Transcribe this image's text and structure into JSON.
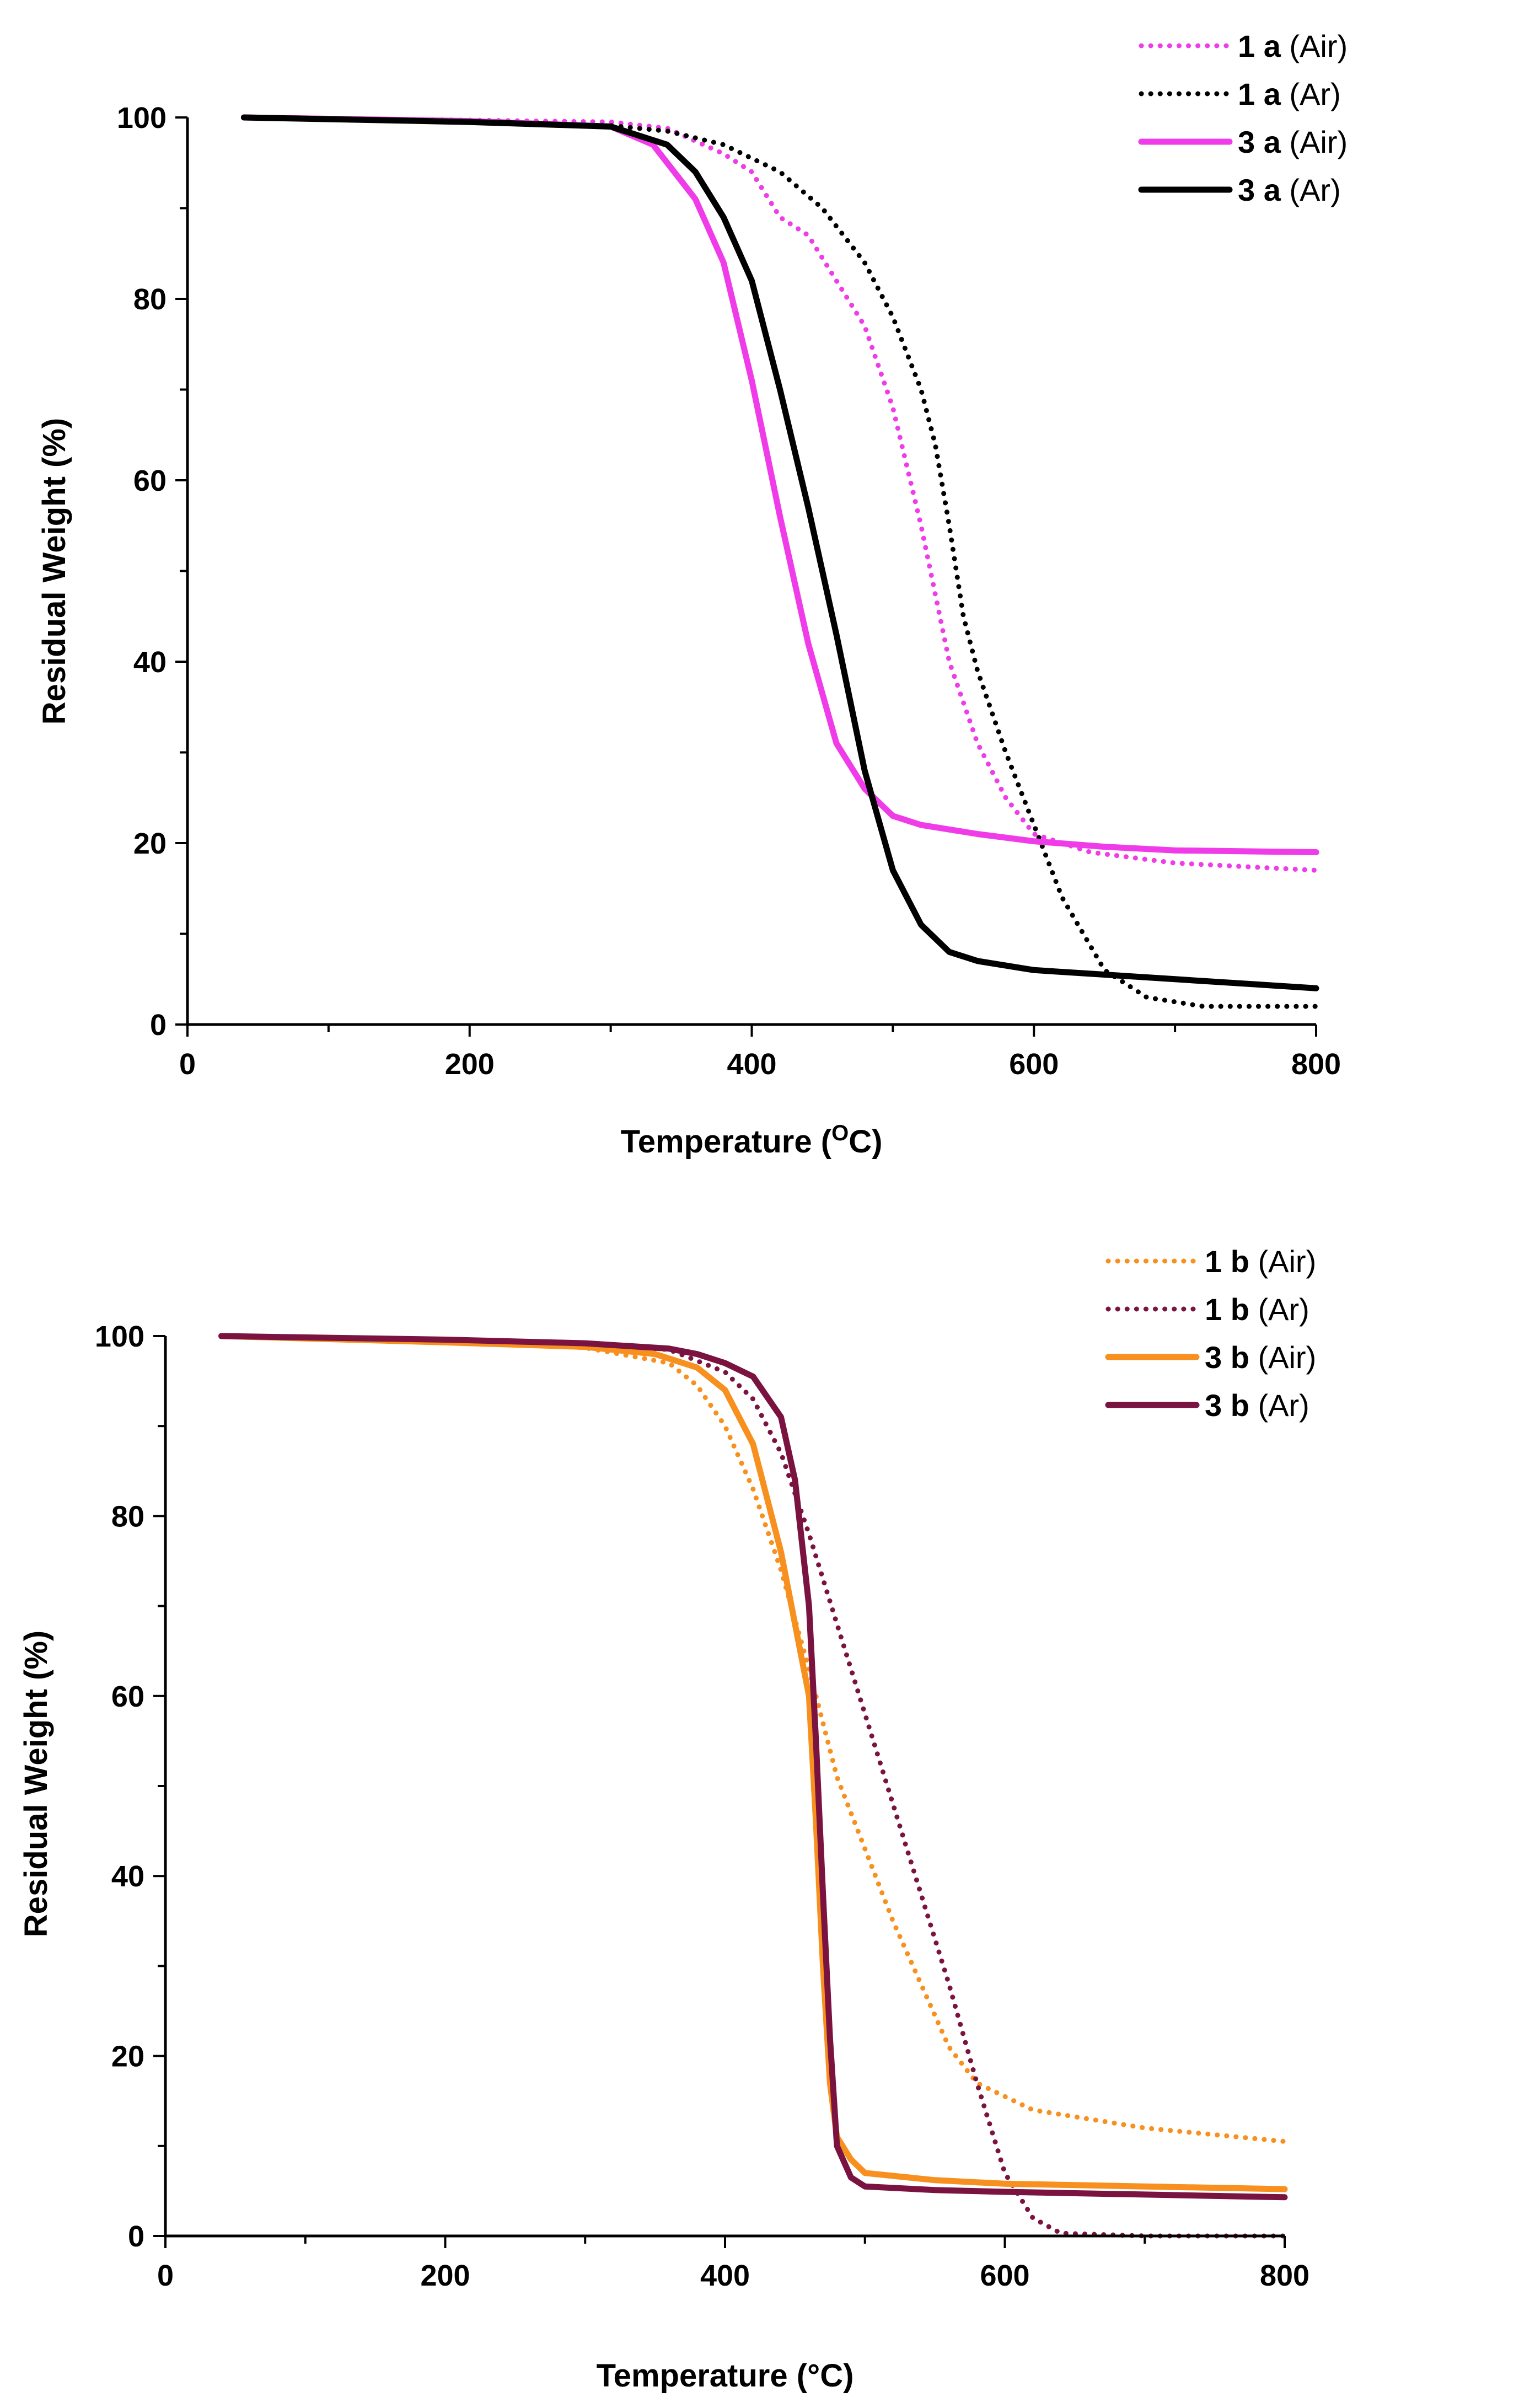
{
  "chart_data": [
    {
      "type": "line",
      "title": "",
      "xlabel": "Temperature (",
      "xlabel_superscript": "O",
      "xlabel_suffix": "C)",
      "ylabel": "Residual Weight (%)",
      "xlim": [
        0,
        800
      ],
      "ylim": [
        0,
        100
      ],
      "xticks": [
        "0",
        "200",
        "400",
        "600",
        "800"
      ],
      "yticks": [
        "0",
        "20",
        "40",
        "60",
        "80",
        "100"
      ],
      "grid": false,
      "legend_position": "top-right",
      "series": [
        {
          "name_bold": "1 a",
          "name_rest": "(Air)",
          "color": "#ef3ce8",
          "style": "dotted",
          "x": [
            40,
            200,
            300,
            340,
            380,
            400,
            420,
            440,
            460,
            480,
            500,
            520,
            540,
            560,
            580,
            600,
            640,
            700,
            800
          ],
          "y": [
            100,
            99.7,
            99.5,
            98.8,
            96,
            94,
            89,
            87,
            82,
            77,
            68,
            55,
            40,
            31,
            25,
            21,
            19,
            17.8,
            17
          ]
        },
        {
          "name_bold": "1 a",
          "name_rest": "(Ar)",
          "color": "#000000",
          "style": "dotted",
          "x": [
            40,
            200,
            300,
            340,
            380,
            420,
            450,
            480,
            500,
            520,
            530,
            540,
            550,
            560,
            580,
            600,
            620,
            650,
            680,
            720,
            800
          ],
          "y": [
            100,
            99.5,
            99.1,
            98.5,
            97,
            94,
            90,
            84,
            78,
            70,
            64,
            55,
            45,
            39,
            30,
            22,
            14,
            6,
            3,
            2,
            2
          ]
        },
        {
          "name_bold": "3 a",
          "name_rest": "(Air)",
          "color": "#ef3ce8",
          "style": "solid",
          "x": [
            40,
            200,
            300,
            330,
            360,
            380,
            400,
            420,
            440,
            460,
            480,
            500,
            520,
            560,
            600,
            650,
            700,
            800
          ],
          "y": [
            100,
            99.6,
            99,
            97,
            91,
            84,
            71,
            56,
            42,
            31,
            26,
            23,
            22,
            21,
            20.2,
            19.6,
            19.2,
            19
          ]
        },
        {
          "name_bold": "3 a",
          "name_rest": "(Ar)",
          "color": "#000000",
          "style": "solid",
          "x": [
            40,
            200,
            300,
            340,
            360,
            380,
            400,
            420,
            440,
            460,
            480,
            500,
            520,
            540,
            560,
            600,
            650,
            700,
            800
          ],
          "y": [
            100,
            99.5,
            99,
            97,
            94,
            89,
            82,
            70,
            57,
            43,
            28,
            17,
            11,
            8,
            7,
            6,
            5.5,
            5,
            4
          ]
        }
      ]
    },
    {
      "type": "line",
      "title": "",
      "xlabel": "Temperature (°C)",
      "ylabel": "Residual Weight (%)",
      "xlim": [
        0,
        800
      ],
      "ylim": [
        0,
        100
      ],
      "xticks": [
        "0",
        "200",
        "400",
        "600",
        "800"
      ],
      "yticks": [
        "0",
        "20",
        "40",
        "60",
        "80",
        "100"
      ],
      "grid": false,
      "legend_position": "top-right",
      "series": [
        {
          "name_bold": "1 b",
          "name_rest": "(Air)",
          "color": "#f7901e",
          "style": "dotted",
          "x": [
            40,
            200,
            300,
            360,
            380,
            400,
            420,
            440,
            460,
            480,
            500,
            520,
            540,
            560,
            580,
            620,
            700,
            800
          ],
          "y": [
            100,
            99.5,
            98.7,
            97,
            94.5,
            90,
            83,
            74,
            63,
            51,
            43,
            35,
            28,
            21,
            17,
            14,
            12,
            10.5
          ]
        },
        {
          "name_bold": "1 b",
          "name_rest": "(Ar)",
          "color": "#7a1340",
          "style": "dotted",
          "x": [
            40,
            200,
            300,
            360,
            400,
            420,
            440,
            460,
            480,
            500,
            520,
            540,
            560,
            580,
            600,
            620,
            640,
            700,
            800
          ],
          "y": [
            100,
            99.6,
            99.2,
            98.5,
            96,
            93,
            87,
            78,
            68,
            58,
            48,
            38,
            28,
            17,
            7,
            2,
            0.3,
            0,
            0
          ]
        },
        {
          "name_bold": "3 b",
          "name_rest": "(Air)",
          "color": "#f7901e",
          "style": "solid",
          "x": [
            40,
            200,
            300,
            350,
            380,
            400,
            420,
            440,
            450,
            460,
            465,
            470,
            475,
            480,
            490,
            500,
            550,
            600,
            700,
            800
          ],
          "y": [
            100,
            99.3,
            98.8,
            98,
            96.5,
            94,
            88,
            76,
            68,
            60,
            46,
            30,
            17,
            11,
            8.5,
            7,
            6.2,
            5.8,
            5.5,
            5.2
          ]
        },
        {
          "name_bold": "3 b",
          "name_rest": "(Ar)",
          "color": "#7a1340",
          "style": "solid",
          "x": [
            40,
            200,
            300,
            360,
            380,
            400,
            420,
            440,
            450,
            460,
            465,
            470,
            475,
            480,
            490,
            500,
            550,
            600,
            700,
            800
          ],
          "y": [
            100,
            99.6,
            99.2,
            98.6,
            98,
            97,
            95.5,
            91,
            84,
            70,
            55,
            38,
            22,
            10,
            6.5,
            5.5,
            5.1,
            4.9,
            4.6,
            4.3
          ]
        }
      ]
    }
  ]
}
